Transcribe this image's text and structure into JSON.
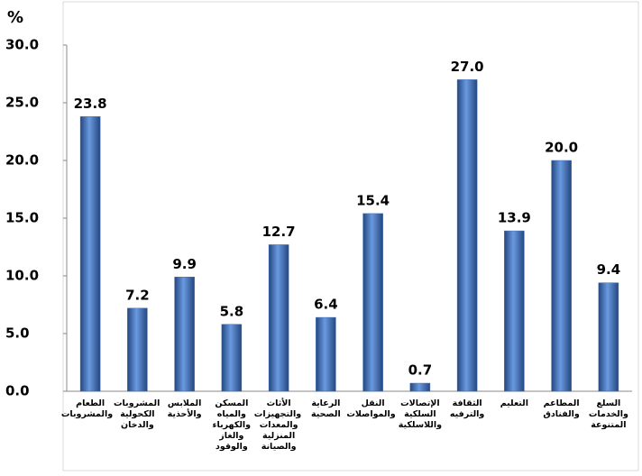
{
  "chart_data": {
    "type": "bar",
    "y_axis_label": "%",
    "categories": [
      "الطعام والمشروبات",
      "المشروبات الكحولية والدخان",
      "الملابس والأحذية",
      "المسكن والمياه والكهرباء والغاز والوقود",
      "الأثاث والتجهيزات والمعدات المنزلية والصيانة",
      "الرعاية الصحية",
      "النقل والمواصلات",
      "الإتصالات السلكية واللاسلكية",
      "الثقافة والترفيه",
      "التعليم",
      "المطاعم والفنادق",
      "السلع والخدمات المتنوعة"
    ],
    "values": [
      23.8,
      7.2,
      9.9,
      5.8,
      12.7,
      6.4,
      15.4,
      0.7,
      27.0,
      13.9,
      20.0,
      9.4
    ],
    "value_labels": [
      "23.8",
      "7.2",
      "9.9",
      "5.8",
      "12.7",
      "6.4",
      "15.4",
      "0.7",
      "27.0",
      "13.9",
      "20.0",
      "9.4"
    ],
    "color": "#3d6bb5",
    "ylim": [
      0,
      30
    ],
    "yticks": [
      {
        "value": 0,
        "label": "0.0"
      },
      {
        "value": 5,
        "label": "5.0"
      },
      {
        "value": 10,
        "label": "10.0"
      },
      {
        "value": 15,
        "label": "15.0"
      },
      {
        "value": 20,
        "label": "20.0"
      },
      {
        "value": 25,
        "label": "25.0"
      },
      {
        "value": 30,
        "label": "30.0"
      }
    ],
    "grid": false
  }
}
